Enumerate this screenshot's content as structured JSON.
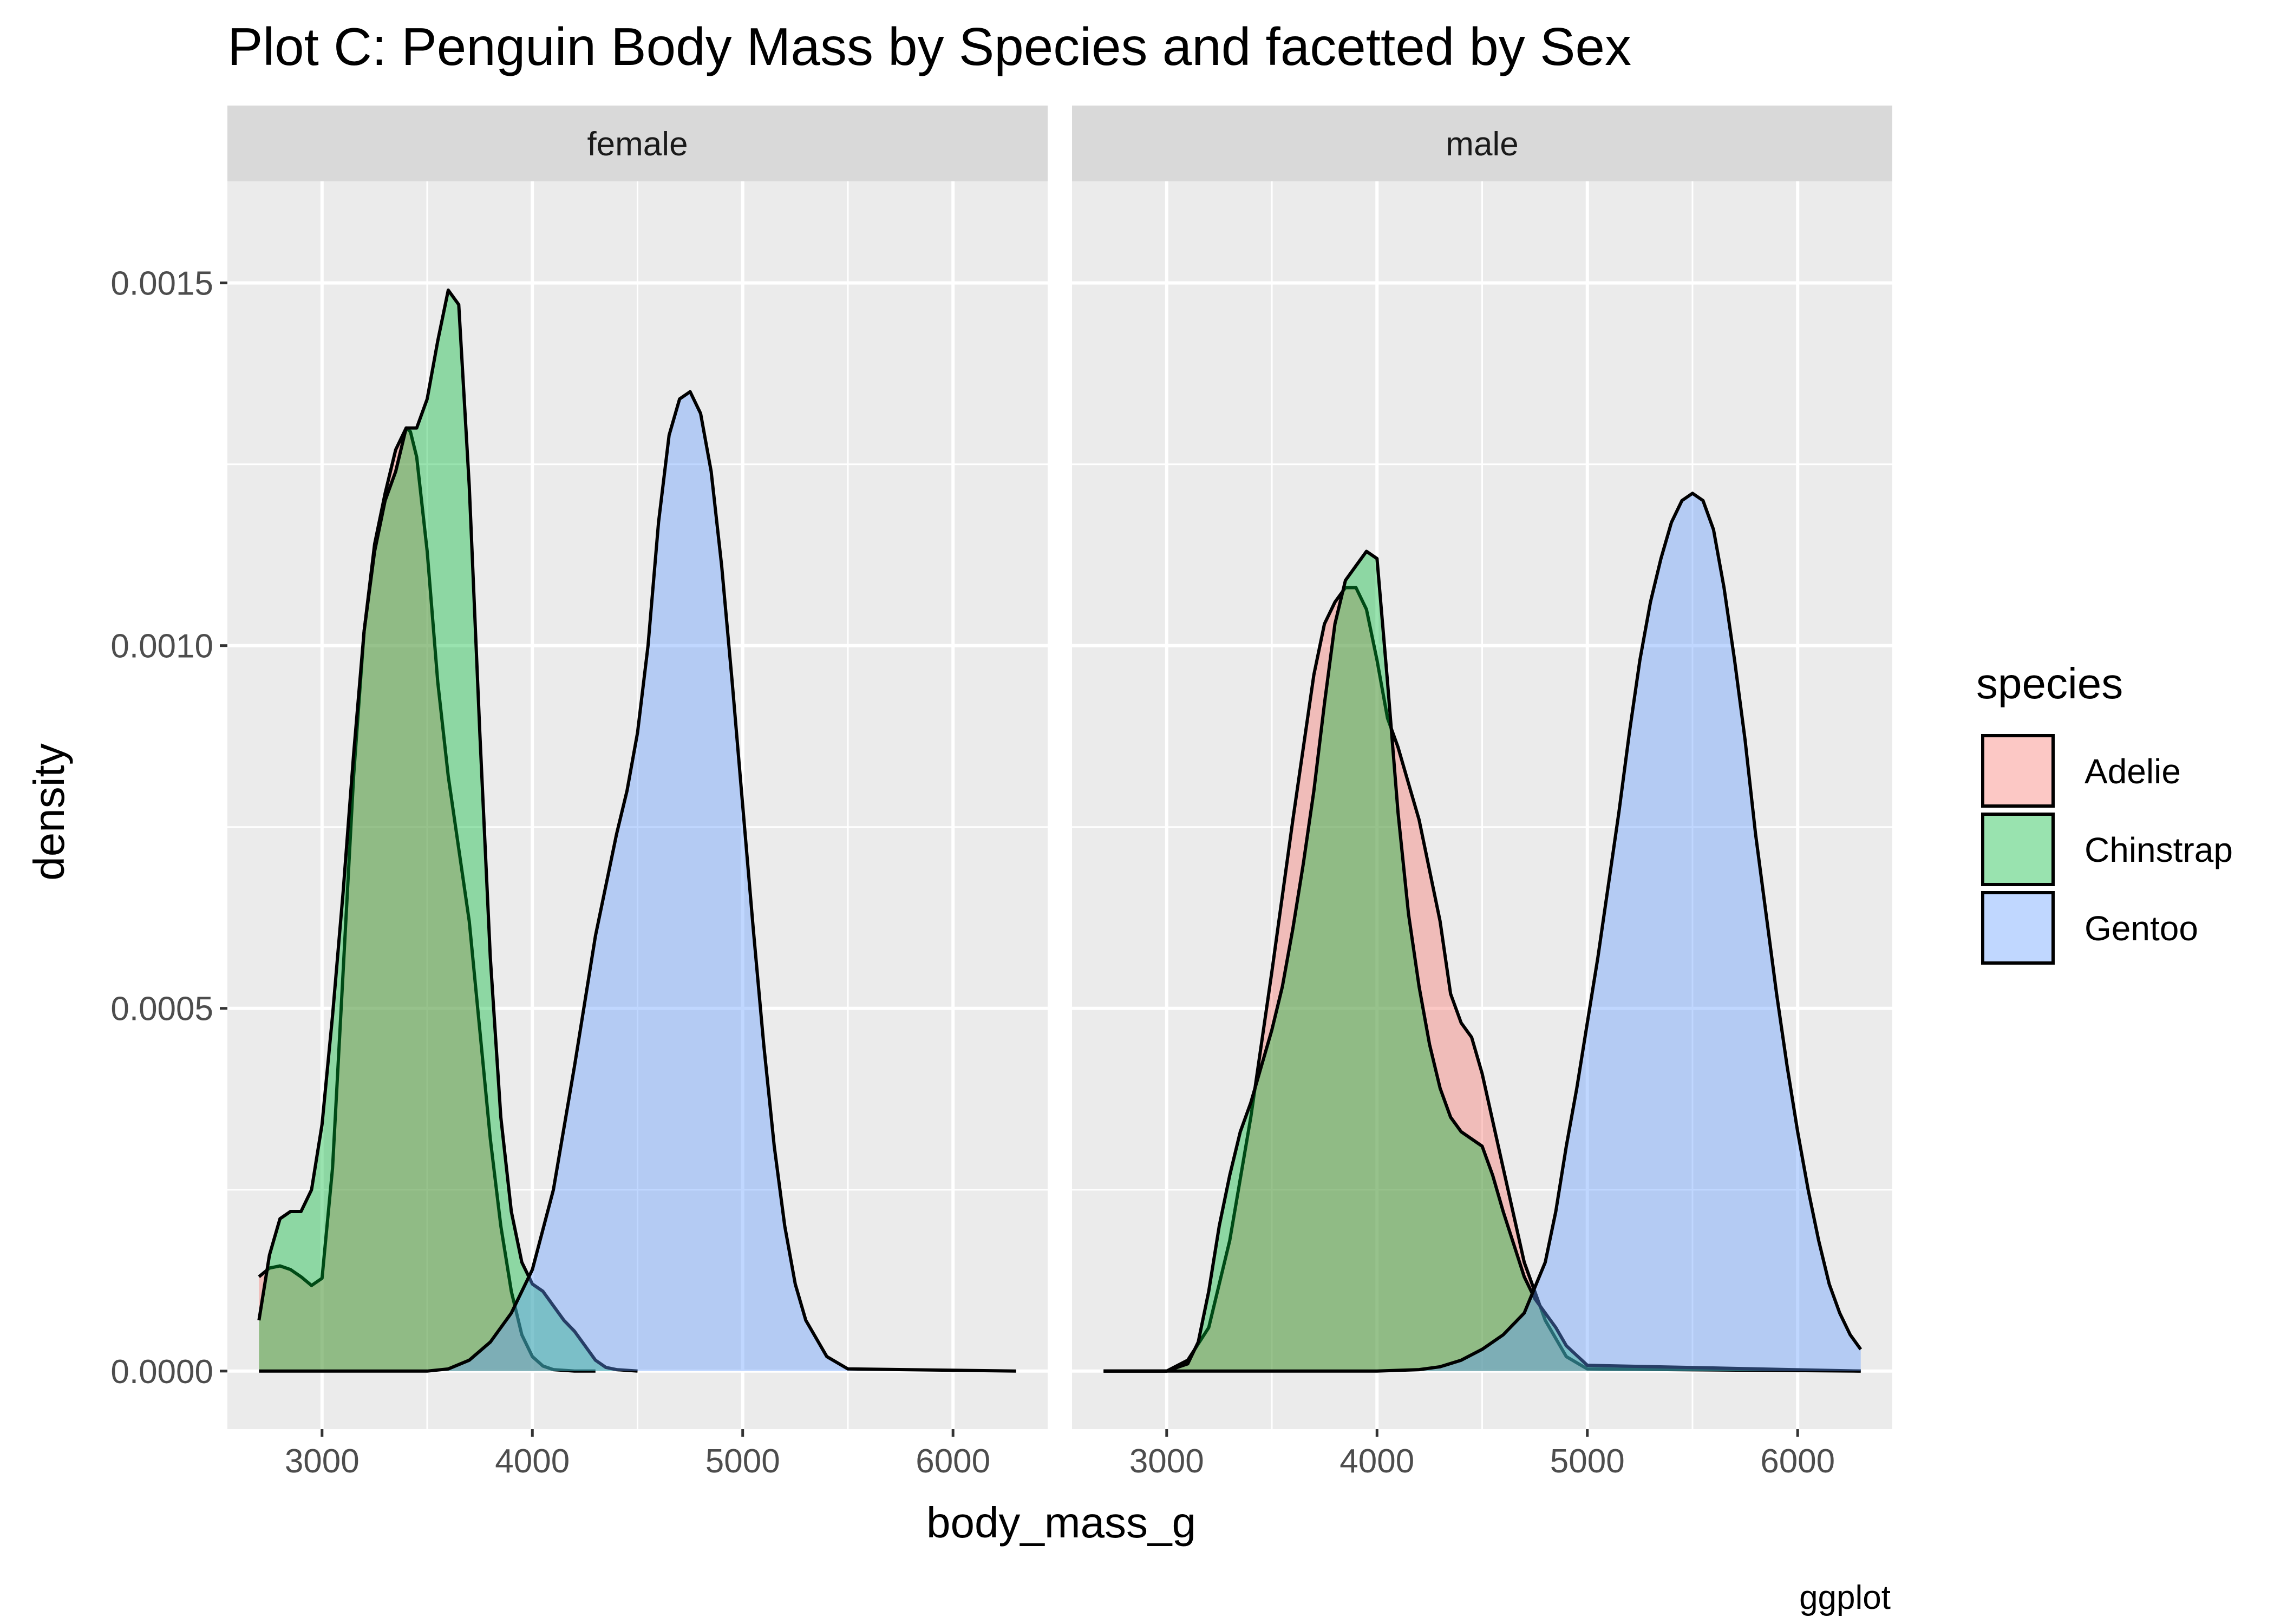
{
  "chart_data": {
    "type": "area",
    "subtype": "density",
    "title": "Plot C: Penguin Body Mass by Species and facetted by Sex",
    "xlabel": "body_mass_g",
    "ylabel": "density",
    "caption": "ggplot",
    "xlim": [
      2550,
      6450
    ],
    "ylim": [
      -8e-05,
      0.00164
    ],
    "x_ticks": [
      3000,
      4000,
      5000,
      6000
    ],
    "x_tick_labels": [
      "3000",
      "4000",
      "5000",
      "6000"
    ],
    "y_ticks": [
      0,
      0.0005,
      0.001,
      0.0015
    ],
    "y_tick_labels": [
      "0.0000",
      "0.0005",
      "0.0010",
      "0.0015"
    ],
    "grid": true,
    "legend": {
      "title": "species",
      "position": "right",
      "entries": [
        "Adelie",
        "Chinstrap",
        "Gentoo"
      ]
    },
    "series_colors": {
      "Adelie": "#F8766D",
      "Chinstrap": "#00BA38",
      "Gentoo": "#619CFF"
    },
    "fill_alpha": 0.4,
    "panels": [
      {
        "label": "female",
        "series": [
          {
            "species": "Adelie",
            "x": [
              2700,
              2750,
              2800,
              2850,
              2900,
              2950,
              3000,
              3050,
              3100,
              3150,
              3200,
              3250,
              3300,
              3350,
              3400,
              3420,
              3450,
              3500,
              3550,
              3600,
              3650,
              3700,
              3750,
              3800,
              3850,
              3900,
              3950,
              4000,
              4050,
              4100,
              4200,
              4300
            ],
            "y": [
              0.00013,
              0.000142,
              0.000145,
              0.00014,
              0.00013,
              0.000118,
              0.000128,
              0.00028,
              0.00055,
              0.00082,
              0.00102,
              0.00114,
              0.00121,
              0.00127,
              0.0013,
              0.001295,
              0.00126,
              0.00113,
              0.00095,
              0.00082,
              0.00072,
              0.00062,
              0.00047,
              0.00032,
              0.0002,
              0.00011,
              5e-05,
              2e-05,
              7e-06,
              2e-06,
              0,
              0
            ]
          },
          {
            "species": "Chinstrap",
            "x": [
              2700,
              2750,
              2800,
              2850,
              2900,
              2950,
              3000,
              3050,
              3100,
              3150,
              3200,
              3250,
              3300,
              3350,
              3400,
              3450,
              3500,
              3550,
              3600,
              3650,
              3700,
              3750,
              3800,
              3850,
              3900,
              3950,
              4000,
              4050,
              4100,
              4150,
              4200,
              4250,
              4300,
              4350,
              4400,
              4500
            ],
            "y": [
              7e-05,
              0.00016,
              0.00021,
              0.00022,
              0.00022,
              0.00025,
              0.00034,
              0.00049,
              0.00066,
              0.00085,
              0.00102,
              0.00113,
              0.0012,
              0.00124,
              0.0013,
              0.0013,
              0.00134,
              0.00142,
              0.00149,
              0.00147,
              0.00122,
              0.00088,
              0.00057,
              0.00035,
              0.00022,
              0.00015,
              0.00012,
              0.00011,
              9e-05,
              7e-05,
              5.5e-05,
              3.5e-05,
              1.5e-05,
              5e-06,
              2e-06,
              0
            ]
          },
          {
            "species": "Gentoo",
            "x": [
              2700,
              3000,
              3500,
              3600,
              3700,
              3800,
              3900,
              4000,
              4100,
              4200,
              4300,
              4400,
              4450,
              4500,
              4550,
              4600,
              4650,
              4700,
              4750,
              4800,
              4850,
              4900,
              4950,
              5000,
              5050,
              5100,
              5150,
              5200,
              5250,
              5300,
              5400,
              5500,
              6300
            ],
            "y": [
              0,
              0,
              0,
              3e-06,
              1.5e-05,
              4e-05,
              8e-05,
              0.00014,
              0.00025,
              0.00042,
              0.0006,
              0.00074,
              0.0008,
              0.00088,
              0.001,
              0.00117,
              0.00129,
              0.00134,
              0.00135,
              0.00132,
              0.00124,
              0.00111,
              0.00095,
              0.00078,
              0.00061,
              0.00045,
              0.00031,
              0.0002,
              0.00012,
              7e-05,
              2e-05,
              3e-06,
              0
            ]
          }
        ]
      },
      {
        "label": "male",
        "series": [
          {
            "species": "Adelie",
            "x": [
              2700,
              3000,
              3100,
              3200,
              3300,
              3400,
              3500,
              3600,
              3700,
              3750,
              3800,
              3850,
              3900,
              3950,
              4000,
              4050,
              4100,
              4150,
              4200,
              4300,
              4350,
              4400,
              4450,
              4500,
              4600,
              4700,
              4800,
              4900,
              5000,
              6300
            ],
            "y": [
              0,
              0,
              1.5e-05,
              6e-05,
              0.00018,
              0.00035,
              0.00055,
              0.00076,
              0.00096,
              0.00103,
              0.00106,
              0.00108,
              0.00108,
              0.00105,
              0.00098,
              0.0009,
              0.00086,
              0.00081,
              0.00076,
              0.00062,
              0.00052,
              0.00048,
              0.00046,
              0.00041,
              0.00028,
              0.00015,
              7e-05,
              2e-05,
              3e-06,
              0
            ]
          },
          {
            "species": "Chinstrap",
            "x": [
              2700,
              3000,
              3050,
              3100,
              3150,
              3200,
              3250,
              3300,
              3350,
              3400,
              3450,
              3500,
              3550,
              3600,
              3650,
              3700,
              3750,
              3800,
              3850,
              3900,
              3950,
              4000,
              4050,
              4100,
              4150,
              4200,
              4250,
              4300,
              4350,
              4400,
              4450,
              4500,
              4550,
              4600,
              4700,
              4750,
              4800,
              4850,
              4900,
              5000,
              6300
            ],
            "y": [
              0,
              0,
              5e-06,
              1e-05,
              4e-05,
              0.00011,
              0.0002,
              0.00027,
              0.00033,
              0.00037,
              0.00042,
              0.00047,
              0.00053,
              0.00061,
              0.0007,
              0.0008,
              0.00092,
              0.00103,
              0.00109,
              0.00111,
              0.00113,
              0.00112,
              0.00095,
              0.00077,
              0.00063,
              0.00053,
              0.00045,
              0.00039,
              0.00035,
              0.00033,
              0.00032,
              0.00031,
              0.00027,
              0.00022,
              0.00013,
              0.0001,
              8e-05,
              6e-05,
              3.5e-05,
              8e-06,
              0
            ]
          },
          {
            "species": "Gentoo",
            "x": [
              2700,
              4000,
              4200,
              4300,
              4400,
              4500,
              4600,
              4700,
              4800,
              4850,
              4900,
              4950,
              5000,
              5050,
              5100,
              5150,
              5200,
              5250,
              5300,
              5350,
              5400,
              5450,
              5500,
              5550,
              5600,
              5650,
              5700,
              5750,
              5800,
              5850,
              5900,
              5950,
              6000,
              6050,
              6100,
              6150,
              6200,
              6250,
              6300
            ],
            "y": [
              0,
              0,
              2e-06,
              6e-06,
              1.5e-05,
              3e-05,
              5e-05,
              8e-05,
              0.00015,
              0.00022,
              0.00031,
              0.00039,
              0.00048,
              0.00057,
              0.00067,
              0.00077,
              0.00088,
              0.00098,
              0.00106,
              0.00112,
              0.00117,
              0.0012,
              0.00121,
              0.0012,
              0.00116,
              0.00108,
              0.00098,
              0.00087,
              0.00074,
              0.00063,
              0.00052,
              0.00042,
              0.00033,
              0.00025,
              0.00018,
              0.00012,
              8e-05,
              5e-05,
              3e-05
            ]
          }
        ]
      }
    ]
  }
}
